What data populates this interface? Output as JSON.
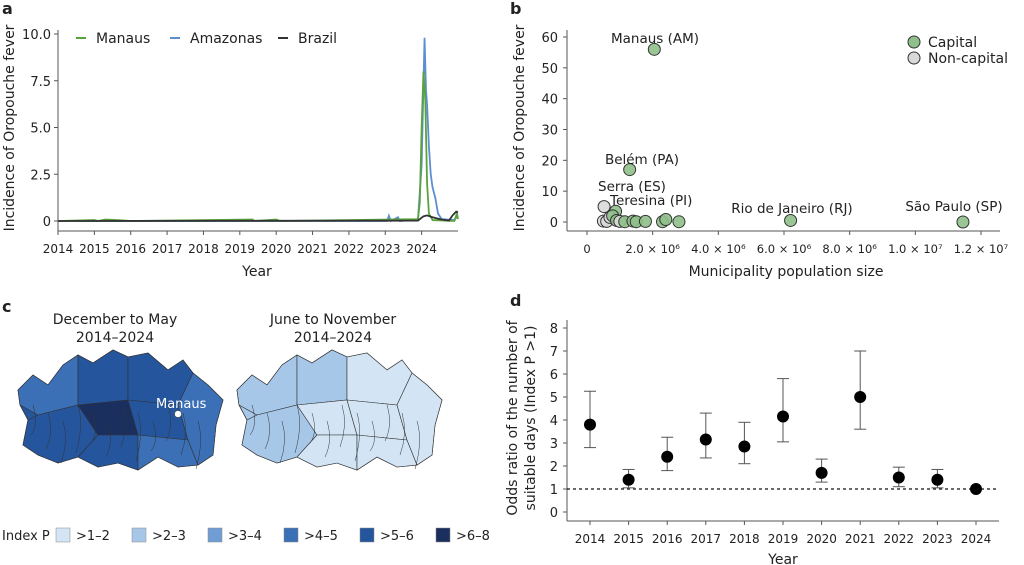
{
  "panels": {
    "a": "a",
    "b": "b",
    "c": "c",
    "d": "d"
  },
  "chart_data": [
    {
      "panel": "a",
      "type": "line",
      "xlabel": "Year",
      "ylabel": "Incidence of Oropouche fever",
      "xticks": [
        "2014",
        "2015",
        "2016",
        "2017",
        "2018",
        "2019",
        "2020",
        "2021",
        "2022",
        "2023",
        "2024"
      ],
      "yticks": [
        "0",
        "2.5",
        "5.0",
        "7.5",
        "10.0"
      ],
      "xlim": [
        2014,
        2025
      ],
      "ylim": [
        0,
        10
      ],
      "legend_position": "top-left",
      "series": [
        {
          "name": "Manaus",
          "color": "#5aa33c",
          "points": [
            [
              2014,
              0
            ],
            [
              2015.0,
              0.05
            ],
            [
              2015.1,
              0
            ],
            [
              2015.3,
              0.08
            ],
            [
              2015.6,
              0.05
            ],
            [
              2016,
              0
            ],
            [
              2019.35,
              0.08
            ],
            [
              2019.4,
              0
            ],
            [
              2020.0,
              0.08
            ],
            [
              2020.1,
              0
            ],
            [
              2023.9,
              0.1
            ],
            [
              2023.95,
              1.0
            ],
            [
              2024.0,
              5.0
            ],
            [
              2024.05,
              8.0
            ],
            [
              2024.1,
              6.5
            ],
            [
              2024.15,
              2.0
            ],
            [
              2024.2,
              0.4
            ],
            [
              2024.3,
              0.05
            ],
            [
              2024.9,
              0
            ],
            [
              2024.97,
              0.4
            ],
            [
              2025,
              0.1
            ]
          ]
        },
        {
          "name": "Amazonas",
          "color": "#5b8fd0",
          "points": [
            [
              2014,
              0
            ],
            [
              2023.05,
              0
            ],
            [
              2023.1,
              0.28
            ],
            [
              2023.15,
              0
            ],
            [
              2023.35,
              0.2
            ],
            [
              2023.4,
              0
            ],
            [
              2023.9,
              0.1
            ],
            [
              2024.0,
              3.0
            ],
            [
              2024.08,
              9.8
            ],
            [
              2024.12,
              7.0
            ],
            [
              2024.15,
              6.2
            ],
            [
              2024.2,
              4.0
            ],
            [
              2024.25,
              2.5
            ],
            [
              2024.3,
              1.8
            ],
            [
              2024.38,
              1.2
            ],
            [
              2024.45,
              0.4
            ],
            [
              2024.55,
              0.1
            ],
            [
              2024.9,
              0.05
            ],
            [
              2025,
              0.3
            ]
          ]
        },
        {
          "name": "Brazil",
          "color": "#333333",
          "points": [
            [
              2014,
              0
            ],
            [
              2023.9,
              0.02
            ],
            [
              2024.05,
              0.25
            ],
            [
              2024.15,
              0.3
            ],
            [
              2024.3,
              0.2
            ],
            [
              2024.5,
              0.1
            ],
            [
              2024.75,
              0.02
            ],
            [
              2024.85,
              0.3
            ],
            [
              2024.95,
              0.5
            ],
            [
              2025,
              0.45
            ]
          ]
        }
      ]
    },
    {
      "panel": "b",
      "type": "scatter",
      "xlabel": "Municipality population size",
      "ylabel": "Incidence of Oropouche fever",
      "xticks": [
        "0",
        "2.0 × 10⁶",
        "4.0 × 10⁶",
        "6.0 × 10⁶",
        "8.0 × 10⁶",
        "1.0 × 10⁷",
        "1.2 × 10⁷"
      ],
      "yticks": [
        "0",
        "10",
        "20",
        "30",
        "40",
        "50",
        "60"
      ],
      "xlim": [
        -300000,
        12300000
      ],
      "ylim": [
        0,
        62
      ],
      "legend_position": "top-right",
      "legend": [
        {
          "name": "Capital",
          "color": "#8fc08a"
        },
        {
          "name": "Non-capital",
          "color": "#d9d9d9"
        }
      ],
      "points": [
        {
          "x": 2050000,
          "y": 56,
          "group": "Capital",
          "label": "Manaus (AM)"
        },
        {
          "x": 1300000,
          "y": 17,
          "group": "Capital",
          "label": "Belém (PA)"
        },
        {
          "x": 520000,
          "y": 5,
          "group": "Non-capital",
          "label": "Serra (ES)"
        },
        {
          "x": 870000,
          "y": 3.5,
          "group": "Capital",
          "label": "Teresina (PI)"
        },
        {
          "x": 6200000,
          "y": 0.5,
          "group": "Capital",
          "label": "Rio de Janeiro (RJ)"
        },
        {
          "x": 11450000,
          "y": 0,
          "group": "Capital",
          "label": "São Paulo (SP)"
        },
        {
          "x": 500000,
          "y": 0.3,
          "group": "Non-capital"
        },
        {
          "x": 600000,
          "y": 0.2,
          "group": "Non-capital"
        },
        {
          "x": 700000,
          "y": 1.5,
          "group": "Non-capital"
        },
        {
          "x": 780000,
          "y": 2,
          "group": "Capital"
        },
        {
          "x": 900000,
          "y": 0.5,
          "group": "Capital"
        },
        {
          "x": 1000000,
          "y": 0.2,
          "group": "Non-capital"
        },
        {
          "x": 1150000,
          "y": 0.1,
          "group": "Capital"
        },
        {
          "x": 1400000,
          "y": 0.3,
          "group": "Capital"
        },
        {
          "x": 1500000,
          "y": 0.1,
          "group": "Capital"
        },
        {
          "x": 1780000,
          "y": 0.2,
          "group": "Capital"
        },
        {
          "x": 2300000,
          "y": 0.1,
          "group": "Capital"
        },
        {
          "x": 2400000,
          "y": 0.8,
          "group": "Capital"
        },
        {
          "x": 2800000,
          "y": 0.1,
          "group": "Capital"
        }
      ]
    },
    {
      "panel": "d",
      "type": "scatter",
      "xlabel": "Year",
      "ylabel": "Odds ratio of the number of suitable days (Index P >1)",
      "ylabel_lines": [
        "Odds ratio of the number of",
        "suitable days (Index P >1)"
      ],
      "categories": [
        "2014",
        "2015",
        "2016",
        "2017",
        "2018",
        "2019",
        "2020",
        "2021",
        "2022",
        "2023",
        "2024"
      ],
      "yticks": [
        "0",
        "1",
        "2",
        "3",
        "4",
        "5",
        "6",
        "7",
        "8"
      ],
      "ylim": [
        -0.3,
        8.3
      ],
      "reference_line": 1,
      "values": [
        3.8,
        1.4,
        2.4,
        3.15,
        2.85,
        4.15,
        1.7,
        5.0,
        1.5,
        1.4,
        1.0
      ],
      "lower": [
        2.8,
        1.05,
        1.8,
        2.35,
        2.1,
        3.05,
        1.3,
        3.6,
        1.1,
        1.05,
        1.0
      ],
      "upper": [
        5.25,
        1.85,
        3.25,
        4.3,
        3.9,
        5.8,
        2.3,
        7.0,
        1.95,
        1.85,
        1.0
      ]
    }
  ],
  "maps": {
    "left_title": [
      "December to May",
      "2014–2024"
    ],
    "right_title": [
      "June to November",
      "2014–2024"
    ],
    "city_label": "Manaus",
    "legend_title": "Index P",
    "legend": [
      {
        "label": ">1–2",
        "color": "#d3e5f5"
      },
      {
        "label": ">2–3",
        "color": "#a7c7e9"
      },
      {
        "label": ">3–4",
        "color": "#6f9dd4"
      },
      {
        "label": ">4–5",
        "color": "#3b6fb6"
      },
      {
        "label": ">5–6",
        "color": "#25559c"
      },
      {
        "label": ">6–8",
        "color": "#1b2f5e"
      }
    ]
  }
}
